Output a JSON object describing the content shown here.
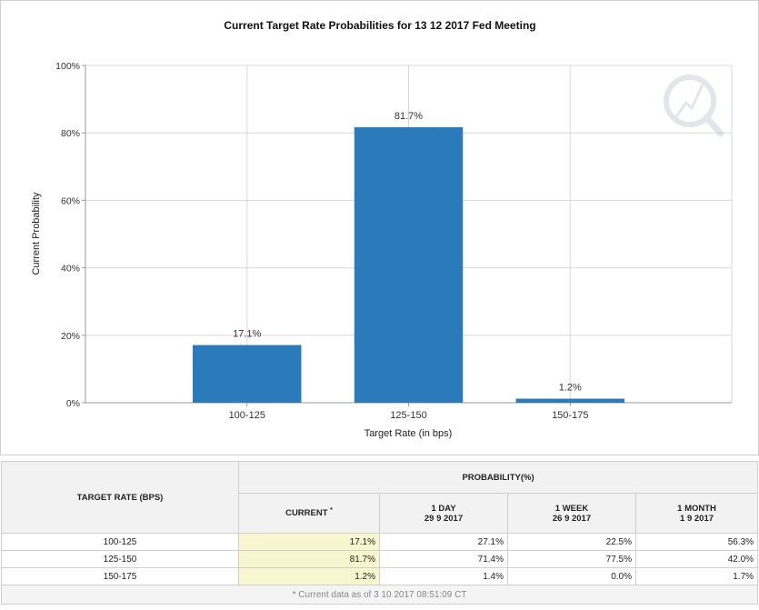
{
  "chart_data": {
    "type": "bar",
    "title": "Current Target Rate Probabilities for 13 12 2017 Fed Meeting",
    "xlabel": "Target Rate (in bps)",
    "ylabel": "Current Probability",
    "categories": [
      "100-125",
      "125-150",
      "150-175"
    ],
    "values": [
      17.1,
      81.7,
      1.2
    ],
    "data_labels": [
      "17.1%",
      "81.7%",
      "1.2%"
    ],
    "ylim": [
      0,
      100
    ],
    "yticks": [
      0,
      20,
      40,
      60,
      80,
      100
    ],
    "ytick_labels": [
      "0%",
      "20%",
      "40%",
      "60%",
      "80%",
      "100%"
    ],
    "grid": true,
    "bar_color": "#2b7bba"
  },
  "table": {
    "rate_header": "TARGET RATE (BPS)",
    "probability_header": "PROBABILITY(%)",
    "columns": [
      {
        "label": "CURRENT",
        "note": "*",
        "date": ""
      },
      {
        "label": "1 DAY",
        "date": "29 9 2017"
      },
      {
        "label": "1 WEEK",
        "date": "26 9 2017"
      },
      {
        "label": "1 MONTH",
        "date": "1 9 2017"
      }
    ],
    "rows": [
      {
        "rate": "100-125",
        "values": [
          "17.1%",
          "27.1%",
          "22.5%",
          "56.3%"
        ]
      },
      {
        "rate": "125-150",
        "values": [
          "81.7%",
          "71.4%",
          "77.5%",
          "42.0%"
        ]
      },
      {
        "rate": "150-175",
        "values": [
          "1.2%",
          "1.4%",
          "0.0%",
          "1.7%"
        ]
      }
    ],
    "footnote": "* Current data as of 3 10 2017 08:51:09 CT"
  },
  "colors": {
    "bar": "#2b7bba",
    "current_highlight": "#f7f6cf",
    "header_bg": "#f2f2f2",
    "grid": "#d8d8d8"
  }
}
